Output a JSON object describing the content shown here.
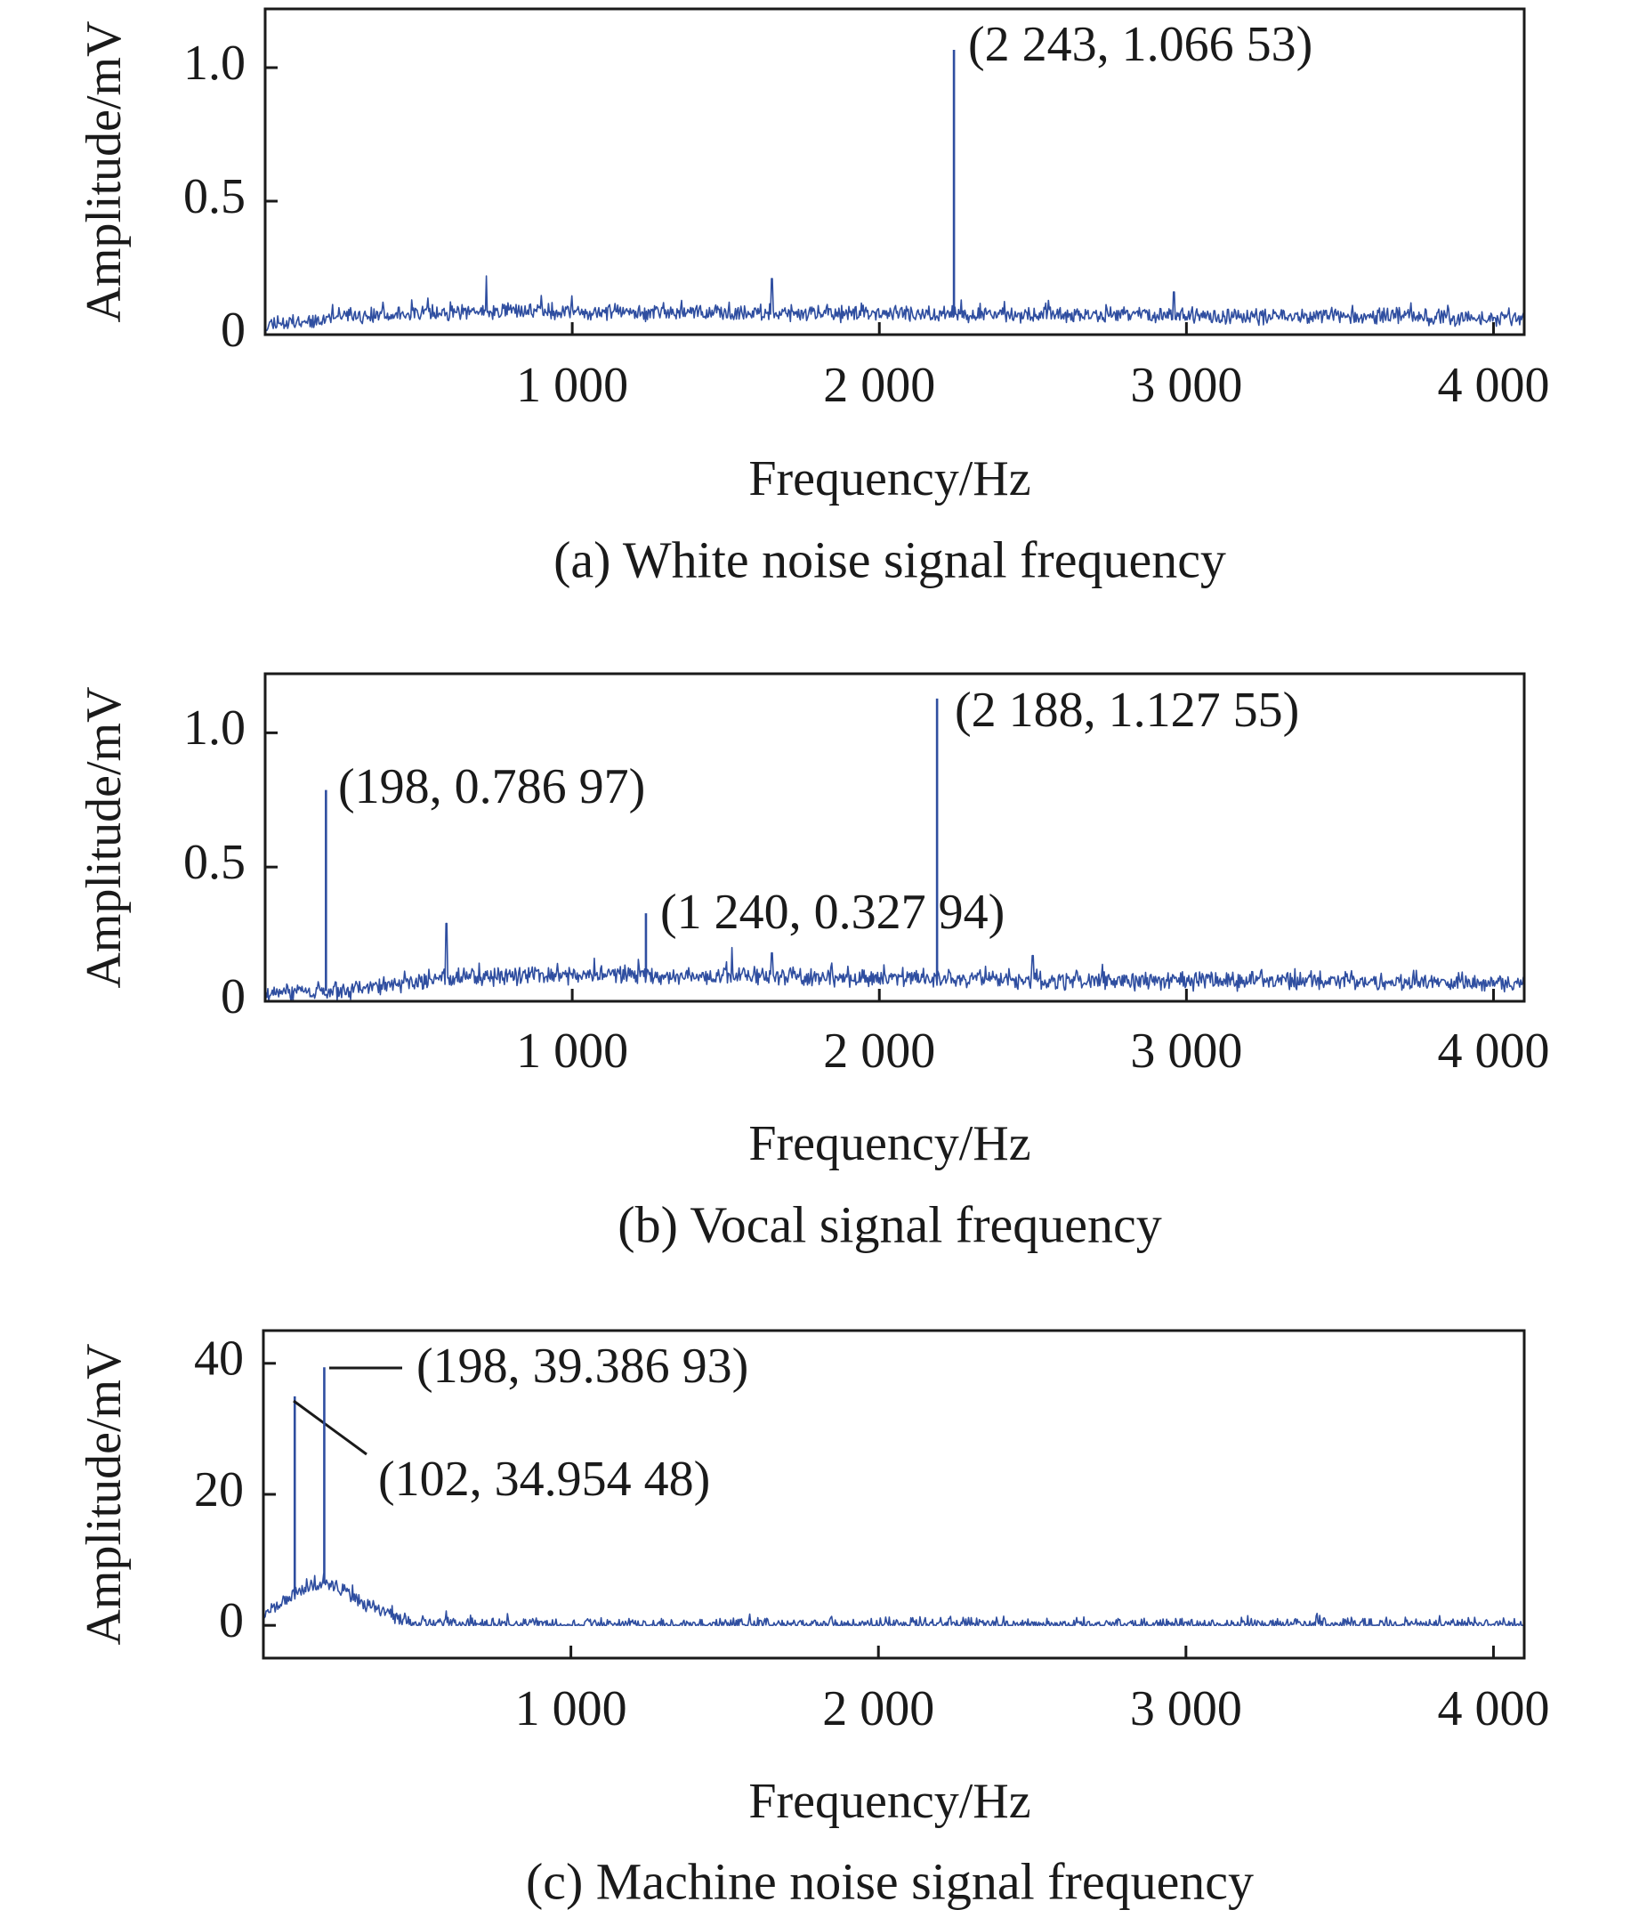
{
  "chart_data": [
    {
      "id": "a",
      "type": "line",
      "caption": "(a)  White noise signal frequency",
      "xlabel": "Frequency/Hz",
      "ylabel": "Amplitude/mV",
      "xlim": [
        0,
        4100
      ],
      "ylim": [
        0,
        1.22
      ],
      "xticks": [
        1000,
        2000,
        3000,
        4000
      ],
      "xtick_labels": [
        "1 000",
        "2 000",
        "3 000",
        "4 000"
      ],
      "yticks": [
        0,
        0.5,
        1.0
      ],
      "ytick_labels": [
        "0",
        "0.5",
        "1.0"
      ],
      "color": "#2f4ea0",
      "noise": {
        "seed": 11,
        "base": [
          [
            0,
            0.04
          ],
          [
            300,
            0.07
          ],
          [
            800,
            0.09
          ],
          [
            1500,
            0.08
          ],
          [
            2300,
            0.075
          ],
          [
            3200,
            0.07
          ],
          [
            4100,
            0.065
          ]
        ],
        "spread": 0.045
      },
      "peaks": [
        {
          "x": 2243,
          "y": 1.06653,
          "label": "(2 243, 1.066 53)"
        }
      ],
      "minor_spikes": [
        [
          720,
          0.22
        ],
        [
          1650,
          0.21
        ],
        [
          2960,
          0.16
        ]
      ]
    },
    {
      "id": "b",
      "type": "line",
      "caption": "(b) Vocal signal frequency",
      "xlabel": "Frequency/Hz",
      "ylabel": "Amplitude/mV",
      "xlim": [
        0,
        4100
      ],
      "ylim": [
        0,
        1.22
      ],
      "xticks": [
        1000,
        2000,
        3000,
        4000
      ],
      "xtick_labels": [
        "1 000",
        "2 000",
        "3 000",
        "4 000"
      ],
      "yticks": [
        0,
        0.5,
        1.0
      ],
      "ytick_labels": [
        "0",
        "0.5",
        "1.0"
      ],
      "color": "#2f4ea0",
      "noise": {
        "seed": 23,
        "base": [
          [
            0,
            0.03
          ],
          [
            250,
            0.04
          ],
          [
            600,
            0.09
          ],
          [
            1200,
            0.1
          ],
          [
            2000,
            0.085
          ],
          [
            3000,
            0.075
          ],
          [
            4100,
            0.07
          ]
        ],
        "spread": 0.05
      },
      "peaks": [
        {
          "x": 198,
          "y": 0.78697,
          "label": "(198, 0.786 97)"
        },
        {
          "x": 1240,
          "y": 0.32794,
          "label": "(1 240, 0.327 94)"
        },
        {
          "x": 2188,
          "y": 1.12755,
          "label": "(2 188, 1.127 55)"
        }
      ],
      "minor_spikes": [
        [
          590,
          0.29
        ],
        [
          1520,
          0.2
        ],
        [
          1650,
          0.18
        ],
        [
          2500,
          0.17
        ]
      ]
    },
    {
      "id": "c",
      "type": "line",
      "caption": "(c) Machine noise signal frequency",
      "xlabel": "Frequency/Hz",
      "ylabel": "Amplitude/mV",
      "xlim": [
        0,
        4100
      ],
      "ylim": [
        -5,
        45
      ],
      "xticks": [
        1000,
        2000,
        3000,
        4000
      ],
      "xtick_labels": [
        "1 000",
        "2 000",
        "3 000",
        "4 000"
      ],
      "yticks": [
        0,
        20,
        40
      ],
      "ytick_labels": [
        "0",
        "20",
        "40"
      ],
      "color": "#2f4ea0",
      "noise": {
        "seed": 37,
        "base": [
          [
            0,
            1.5
          ],
          [
            60,
            3.5
          ],
          [
            150,
            6
          ],
          [
            220,
            6.5
          ],
          [
            300,
            4
          ],
          [
            400,
            1.8
          ],
          [
            500,
            0.4
          ],
          [
            650,
            0.1
          ],
          [
            4100,
            0.05
          ]
        ],
        "spread": 1.6
      },
      "peaks": [
        {
          "x": 102,
          "y": 34.95448,
          "label": "(102, 34.954 48)"
        },
        {
          "x": 198,
          "y": 39.38693,
          "label": "(198, 39.386 93)"
        }
      ],
      "minor_spikes": []
    }
  ]
}
